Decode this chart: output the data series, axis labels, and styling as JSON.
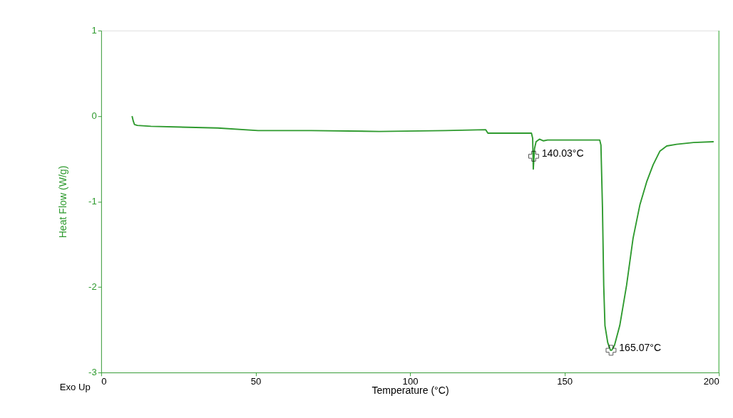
{
  "chart_data": {
    "type": "line",
    "xlabel": "Temperature (°C)",
    "ylabel": "Heat Flow (W/g)",
    "xlim": [
      0,
      200
    ],
    "xticks": [
      0,
      50,
      100,
      150,
      200
    ],
    "ylim": [
      -3,
      1
    ],
    "yticks": [
      -3,
      -2,
      -1,
      0,
      1
    ],
    "grid": false,
    "marker": "none",
    "line_style": "solid",
    "series": [
      {
        "color": "#2e9a2e",
        "x": [
          10,
          10.4,
          10.8,
          11.7,
          16.1,
          37.7,
          50.8,
          68,
          90,
          111.5,
          124.5,
          125.2,
          139.3,
          139.7,
          139.9,
          140.3,
          140.8,
          141.9,
          143.2,
          144.5,
          161.4,
          161.8,
          162.3,
          162.7,
          163.1,
          164.0,
          164.9,
          165.3,
          166.2,
          167.9,
          170.1,
          172.2,
          174.4,
          176.6,
          178.7,
          180.9,
          183.1,
          186.3,
          191.8,
          198.3
        ],
        "values": [
          0,
          -0.06,
          -0.1,
          -0.11,
          -0.12,
          -0.14,
          -0.17,
          -0.17,
          -0.18,
          -0.17,
          -0.16,
          -0.2,
          -0.2,
          -0.26,
          -0.62,
          -0.38,
          -0.3,
          -0.27,
          -0.29,
          -0.28,
          -0.28,
          -0.34,
          -1.08,
          -1.98,
          -2.45,
          -2.65,
          -2.74,
          -2.74,
          -2.68,
          -2.45,
          -1.98,
          -1.43,
          -1.04,
          -0.77,
          -0.57,
          -0.41,
          -0.35,
          -0.33,
          -0.31,
          -0.3
        ]
      }
    ],
    "annotations": [
      {
        "text": "140.03°C",
        "x": 140.03,
        "y": -0.47
      },
      {
        "text": "165.07°C",
        "x": 165.07,
        "y": -2.74
      },
      "Exo Up"
    ]
  }
}
